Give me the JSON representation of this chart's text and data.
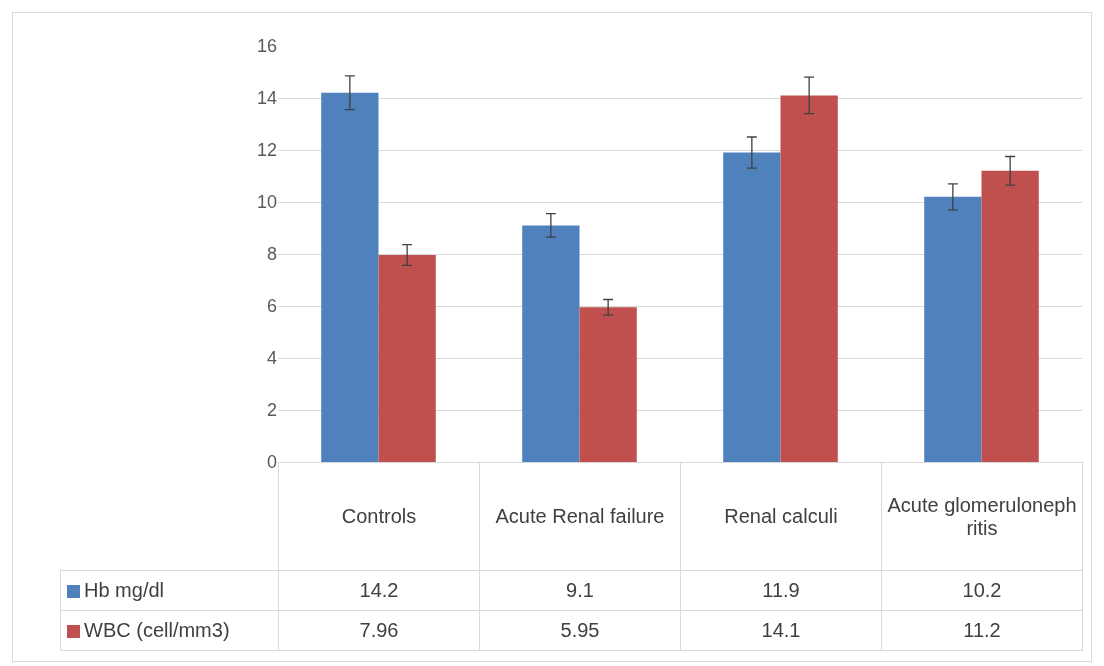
{
  "chart_data": {
    "type": "bar",
    "categories": [
      "Controls",
      "Acute Renal failure",
      "Renal calculi",
      "Acute glomerulonephritis"
    ],
    "series": [
      {
        "name": "Hb mg/dl",
        "color": "#4f81bd",
        "values": [
          14.2,
          9.1,
          11.9,
          10.2
        ],
        "errors": [
          0.65,
          0.45,
          0.6,
          0.5
        ]
      },
      {
        "name": "WBC (cell/mm3)",
        "color": "#c0504d",
        "values": [
          7.96,
          5.95,
          14.1,
          11.2
        ],
        "errors": [
          0.4,
          0.3,
          0.7,
          0.55
        ]
      }
    ],
    "ylim": [
      0,
      16
    ],
    "yticks": [
      0,
      2,
      4,
      6,
      8,
      10,
      12,
      14,
      16
    ],
    "grid": "y",
    "data_labels": true,
    "legend": "bottom"
  }
}
